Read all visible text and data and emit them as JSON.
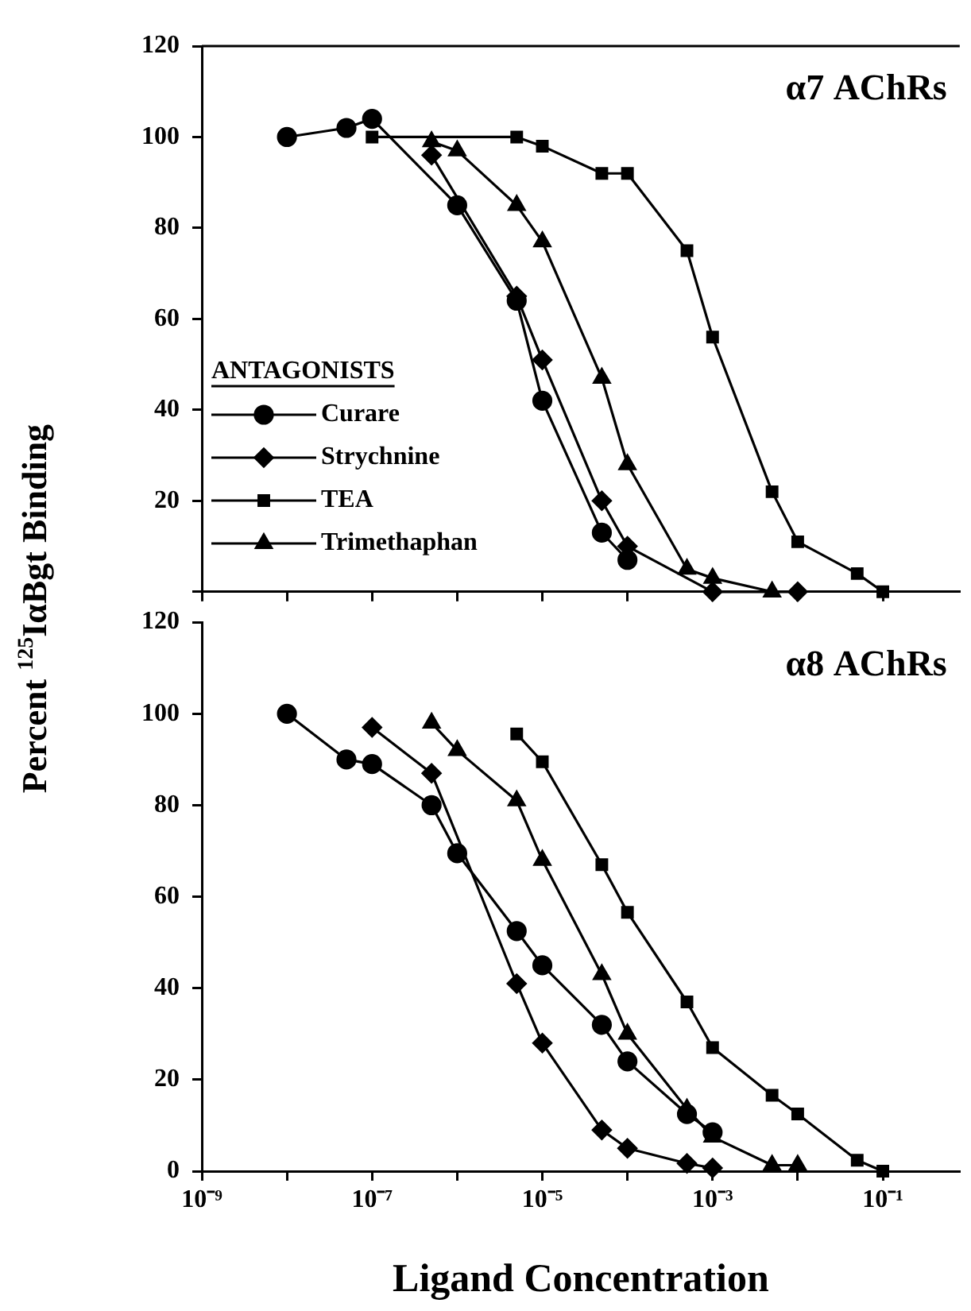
{
  "chart_data": [
    {
      "type": "line",
      "title": "α7 AChRs",
      "ylabel": "Percent $^{125}$IαBgt Binding",
      "legend_title": "ANTAGONISTS",
      "legend": "left",
      "log": "x",
      "grid": false,
      "line_style": "solid",
      "tick_labels": "y",
      "xlim": [
        1e-09,
        0.8
      ],
      "ylim": [
        0,
        120
      ],
      "xticks": [
        {
          "value": 1e-09,
          "label": null
        },
        {
          "value": 1e-08,
          "label": null
        },
        {
          "value": 1e-07,
          "label": null
        },
        {
          "value": 1e-06,
          "label": null
        },
        {
          "value": 1e-05,
          "label": null
        },
        {
          "value": 0.0001,
          "label": null
        },
        {
          "value": 0.001,
          "label": null
        },
        {
          "value": 0.01,
          "label": null
        },
        {
          "value": 0.1,
          "label": null
        }
      ],
      "yticks": [
        {
          "value": 0,
          "label": null
        },
        20,
        40,
        60,
        80,
        100,
        120
      ],
      "series": [
        {
          "name": "Curare",
          "color": "#000000",
          "marker": "circle",
          "x": [
            1e-08,
            5e-08,
            1e-07,
            1e-06,
            5e-06,
            1e-05,
            5e-05,
            0.0001
          ],
          "values": [
            100,
            102,
            104,
            85,
            64,
            42,
            13,
            7
          ]
        },
        {
          "name": "Strychnine",
          "color": "#000000",
          "marker": "diamond",
          "x": [
            5e-07,
            5e-06,
            1e-05,
            5e-05,
            0.0001,
            0.001,
            0.01
          ],
          "values": [
            96,
            65,
            51,
            20,
            10,
            0,
            0
          ]
        },
        {
          "name": "TEA",
          "color": "#000000",
          "marker": "square",
          "x": [
            1e-07,
            5e-06,
            1e-05,
            5e-05,
            0.0001,
            0.0005,
            0.001,
            0.005,
            0.01,
            0.05,
            0.1
          ],
          "values": [
            100,
            100,
            98,
            92,
            92,
            75,
            56,
            22,
            11,
            4,
            0
          ]
        },
        {
          "name": "Trimethaphan",
          "color": "#000000",
          "marker": "triangle",
          "x": [
            5e-07,
            1e-06,
            5e-06,
            1e-05,
            5e-05,
            0.0001,
            0.0005,
            0.001,
            0.005
          ],
          "values": [
            99,
            97,
            85,
            77,
            47,
            28,
            5,
            3,
            0
          ]
        }
      ]
    },
    {
      "type": "line",
      "title": "α8 AChRs",
      "xlabel": "Ligand Concentration",
      "log": "x",
      "grid": false,
      "line_style": "solid",
      "xlim": [
        1e-09,
        0.8
      ],
      "ylim": [
        0,
        120
      ],
      "xticks": [
        {
          "value": 1e-09,
          "label": "10⁻⁹"
        },
        {
          "value": 1e-08,
          "label": null
        },
        {
          "value": 1e-07,
          "label": "10⁻⁷"
        },
        {
          "value": 1e-06,
          "label": null
        },
        {
          "value": 1e-05,
          "label": "10⁻⁵"
        },
        {
          "value": 0.0001,
          "label": null
        },
        {
          "value": 0.001,
          "label": "10⁻³"
        },
        {
          "value": 0.01,
          "label": null
        },
        {
          "value": 0.1,
          "label": "10⁻¹"
        }
      ],
      "yticks": [
        0,
        20,
        40,
        60,
        80,
        100,
        120
      ],
      "series": [
        {
          "color": "#000000",
          "marker": "circle",
          "x": [
            1e-08,
            5e-08,
            1e-07,
            5e-07,
            1e-06,
            5e-06,
            1e-05,
            5e-05,
            0.0001,
            0.0005,
            0.001
          ],
          "values": [
            100,
            90,
            89,
            80,
            69.5,
            52.5,
            45,
            32,
            24,
            12.5,
            8.5
          ]
        },
        {
          "color": "#000000",
          "marker": "diamond",
          "x": [
            1e-07,
            5e-07,
            5e-06,
            1e-05,
            5e-05,
            0.0001,
            0.0005,
            0.001
          ],
          "values": [
            97,
            87,
            41,
            28,
            9,
            5,
            1.7,
            0.7
          ]
        },
        {
          "color": "#000000",
          "marker": "square",
          "x": [
            5e-06,
            1e-05,
            5e-05,
            0.0001,
            0.0005,
            0.001,
            0.005,
            0.01,
            0.05,
            0.1
          ],
          "values": [
            95.6,
            89.5,
            67,
            56.6,
            37,
            27,
            16.6,
            12.5,
            2.4,
            0
          ]
        },
        {
          "color": "#000000",
          "marker": "triangle",
          "x": [
            5e-07,
            1e-06,
            5e-06,
            1e-05,
            5e-05,
            0.0001,
            0.0005,
            0.001,
            0.005,
            0.01
          ],
          "values": [
            98,
            92,
            81,
            68,
            43,
            30,
            13.6,
            7.5,
            1.3,
            1.3
          ]
        }
      ]
    }
  ]
}
